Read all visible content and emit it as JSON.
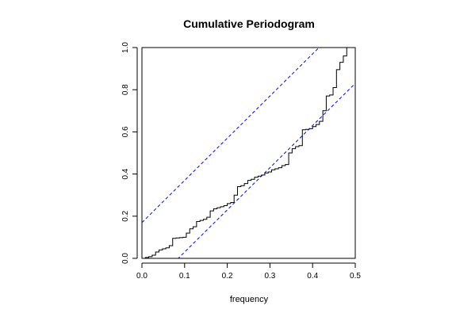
{
  "chart_data": {
    "type": "line",
    "title": "Cumulative Periodogram",
    "xlabel": "frequency",
    "ylabel": "",
    "xlim": [
      0.0,
      0.5
    ],
    "ylim": [
      0.0,
      1.0
    ],
    "x_ticks": [
      "0.0",
      "0.1",
      "0.2",
      "0.3",
      "0.4",
      "0.5"
    ],
    "y_ticks": [
      "0.0",
      "0.2",
      "0.4",
      "0.6",
      "0.8",
      "1.0"
    ],
    "grid": false,
    "series": [
      {
        "style": "step",
        "color": "#000000",
        "x": [
          0.0,
          0.008,
          0.016,
          0.024,
          0.032,
          0.04,
          0.048,
          0.056,
          0.064,
          0.072,
          0.08,
          0.088,
          0.096,
          0.104,
          0.112,
          0.12,
          0.128,
          0.136,
          0.144,
          0.152,
          0.16,
          0.168,
          0.176,
          0.184,
          0.192,
          0.2,
          0.208,
          0.216,
          0.224,
          0.232,
          0.24,
          0.248,
          0.256,
          0.264,
          0.272,
          0.28,
          0.288,
          0.296,
          0.304,
          0.312,
          0.32,
          0.328,
          0.336,
          0.344,
          0.352,
          0.36,
          0.368,
          0.376,
          0.384,
          0.392,
          0.4,
          0.408,
          0.416,
          0.424,
          0.432,
          0.44,
          0.448,
          0.456,
          0.464,
          0.472,
          0.48,
          0.488,
          0.496
        ],
        "y": [
          0.0,
          0.004,
          0.008,
          0.015,
          0.03,
          0.04,
          0.045,
          0.05,
          0.06,
          0.095,
          0.097,
          0.098,
          0.1,
          0.12,
          0.14,
          0.15,
          0.175,
          0.18,
          0.185,
          0.195,
          0.225,
          0.235,
          0.24,
          0.245,
          0.25,
          0.26,
          0.265,
          0.3,
          0.34,
          0.345,
          0.355,
          0.37,
          0.375,
          0.385,
          0.39,
          0.395,
          0.405,
          0.41,
          0.42,
          0.425,
          0.43,
          0.44,
          0.445,
          0.5,
          0.52,
          0.53,
          0.535,
          0.61,
          0.612,
          0.615,
          0.625,
          0.635,
          0.65,
          0.7,
          0.77,
          0.775,
          0.81,
          0.895,
          0.93,
          0.96,
          1.0,
          1.0,
          1.0
        ]
      },
      {
        "style": "dashed",
        "color": "#0000ff",
        "x": [
          0.0,
          0.5
        ],
        "y": [
          0.17,
          1.17
        ]
      },
      {
        "style": "dashed",
        "color": "#0000ff",
        "x": [
          0.0,
          0.5
        ],
        "y": [
          -0.17,
          0.83
        ]
      }
    ]
  }
}
